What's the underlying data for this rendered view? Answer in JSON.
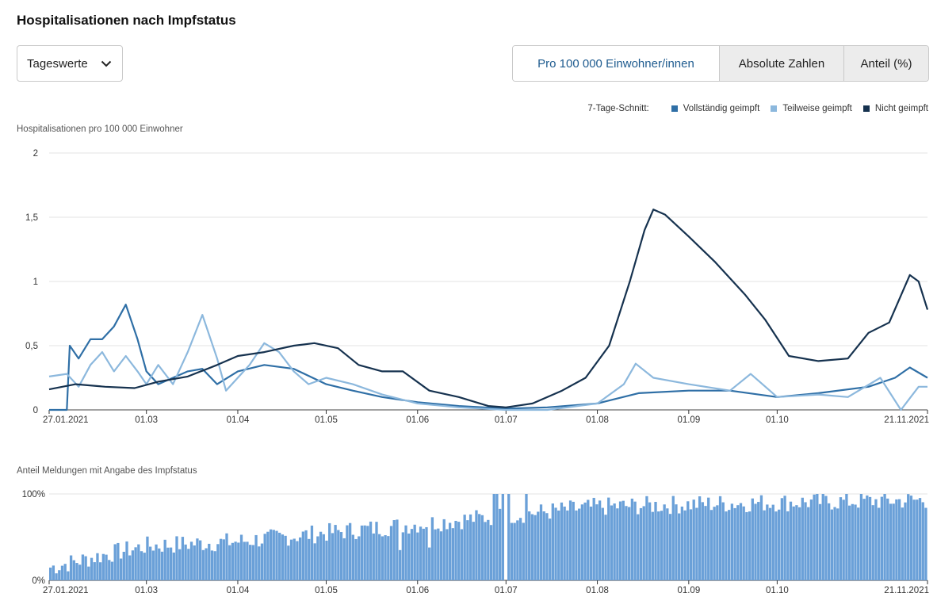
{
  "title": "Hospitalisationen nach Impfstatus",
  "dropdown": {
    "label": "Tageswerte",
    "icon": "chevron-down-icon"
  },
  "segmented": {
    "options": [
      "Pro 100 000 Einwohner/innen",
      "Absolute Zahlen",
      "Anteil (%)"
    ],
    "selected": "Pro 100 000 Einwohner/innen"
  },
  "legend": {
    "title": "7-Tage-Schnitt:",
    "items": [
      {
        "label": "Vollständig geimpft",
        "color": "#2f6fa6"
      },
      {
        "label": "Teilweise geimpft",
        "color": "#8cb8dd"
      },
      {
        "label": "Nicht geimpft",
        "color": "#16324f"
      }
    ]
  },
  "chart_data": [
    {
      "type": "line",
      "ylabel": "Hospitalisationen pro 100 000 Einwohner",
      "ylim": [
        0,
        2
      ],
      "yticks": [
        "0",
        "0,5",
        "1",
        "1,5",
        "2"
      ],
      "xlim": [
        "2021-01-27",
        "2021-11-21"
      ],
      "xtick_labels": [
        "27.01.2021",
        "01.03",
        "01.04",
        "01.05",
        "01.06",
        "01.07",
        "01.08",
        "01.09",
        "01.10",
        "21.11.2021"
      ],
      "grid": true,
      "series": [
        {
          "name": "Vollständig geimpft",
          "color": "#2f6fa6",
          "points": [
            [
              "2021-01-27",
              0
            ],
            [
              "2021-02-02",
              0.0
            ],
            [
              "2021-02-03",
              0.5
            ],
            [
              "2021-02-06",
              0.4
            ],
            [
              "2021-02-10",
              0.55
            ],
            [
              "2021-02-14",
              0.55
            ],
            [
              "2021-02-18",
              0.65
            ],
            [
              "2021-02-22",
              0.82
            ],
            [
              "2021-02-26",
              0.55
            ],
            [
              "2021-03-01",
              0.3
            ],
            [
              "2021-03-05",
              0.2
            ],
            [
              "2021-03-10",
              0.25
            ],
            [
              "2021-03-15",
              0.3
            ],
            [
              "2021-03-20",
              0.32
            ],
            [
              "2021-03-25",
              0.2
            ],
            [
              "2021-04-01",
              0.3
            ],
            [
              "2021-04-10",
              0.35
            ],
            [
              "2021-04-20",
              0.32
            ],
            [
              "2021-05-01",
              0.2
            ],
            [
              "2021-05-10",
              0.15
            ],
            [
              "2021-05-20",
              0.1
            ],
            [
              "2021-06-01",
              0.06
            ],
            [
              "2021-06-15",
              0.03
            ],
            [
              "2021-07-01",
              0.01
            ],
            [
              "2021-07-15",
              0.02
            ],
            [
              "2021-08-01",
              0.05
            ],
            [
              "2021-08-15",
              0.13
            ],
            [
              "2021-09-01",
              0.15
            ],
            [
              "2021-09-15",
              0.15
            ],
            [
              "2021-10-01",
              0.1
            ],
            [
              "2021-10-15",
              0.13
            ],
            [
              "2021-11-01",
              0.18
            ],
            [
              "2021-11-10",
              0.25
            ],
            [
              "2021-11-15",
              0.33
            ],
            [
              "2021-11-21",
              0.25
            ]
          ]
        },
        {
          "name": "Teilweise geimpft",
          "color": "#8cb8dd",
          "points": [
            [
              "2021-01-27",
              0.26
            ],
            [
              "2021-02-02",
              0.28
            ],
            [
              "2021-02-06",
              0.18
            ],
            [
              "2021-02-10",
              0.35
            ],
            [
              "2021-02-14",
              0.45
            ],
            [
              "2021-02-18",
              0.3
            ],
            [
              "2021-02-22",
              0.42
            ],
            [
              "2021-02-26",
              0.3
            ],
            [
              "2021-03-01",
              0.2
            ],
            [
              "2021-03-05",
              0.35
            ],
            [
              "2021-03-10",
              0.2
            ],
            [
              "2021-03-15",
              0.45
            ],
            [
              "2021-03-20",
              0.74
            ],
            [
              "2021-03-25",
              0.4
            ],
            [
              "2021-03-28",
              0.15
            ],
            [
              "2021-04-05",
              0.35
            ],
            [
              "2021-04-10",
              0.52
            ],
            [
              "2021-04-15",
              0.45
            ],
            [
              "2021-04-20",
              0.3
            ],
            [
              "2021-04-25",
              0.2
            ],
            [
              "2021-05-01",
              0.25
            ],
            [
              "2021-05-10",
              0.2
            ],
            [
              "2021-05-20",
              0.12
            ],
            [
              "2021-06-01",
              0.05
            ],
            [
              "2021-06-15",
              0.02
            ],
            [
              "2021-07-01",
              0.0
            ],
            [
              "2021-07-15",
              0.0
            ],
            [
              "2021-08-01",
              0.05
            ],
            [
              "2021-08-10",
              0.2
            ],
            [
              "2021-08-14",
              0.36
            ],
            [
              "2021-08-20",
              0.25
            ],
            [
              "2021-09-01",
              0.2
            ],
            [
              "2021-09-15",
              0.15
            ],
            [
              "2021-09-22",
              0.28
            ],
            [
              "2021-10-01",
              0.1
            ],
            [
              "2021-10-15",
              0.12
            ],
            [
              "2021-10-25",
              0.1
            ],
            [
              "2021-11-05",
              0.25
            ],
            [
              "2021-11-12",
              0.0
            ],
            [
              "2021-11-18",
              0.18
            ],
            [
              "2021-11-21",
              0.18
            ]
          ]
        },
        {
          "name": "Nicht geimpft",
          "color": "#16324f",
          "points": [
            [
              "2021-01-27",
              0.16
            ],
            [
              "2021-02-05",
              0.2
            ],
            [
              "2021-02-15",
              0.18
            ],
            [
              "2021-02-25",
              0.17
            ],
            [
              "2021-03-05",
              0.22
            ],
            [
              "2021-03-15",
              0.26
            ],
            [
              "2021-03-25",
              0.35
            ],
            [
              "2021-04-01",
              0.42
            ],
            [
              "2021-04-10",
              0.45
            ],
            [
              "2021-04-20",
              0.5
            ],
            [
              "2021-04-27",
              0.52
            ],
            [
              "2021-05-05",
              0.48
            ],
            [
              "2021-05-12",
              0.35
            ],
            [
              "2021-05-20",
              0.3
            ],
            [
              "2021-05-27",
              0.3
            ],
            [
              "2021-06-05",
              0.15
            ],
            [
              "2021-06-15",
              0.1
            ],
            [
              "2021-06-25",
              0.03
            ],
            [
              "2021-07-01",
              0.02
            ],
            [
              "2021-07-10",
              0.05
            ],
            [
              "2021-07-20",
              0.15
            ],
            [
              "2021-07-28",
              0.25
            ],
            [
              "2021-08-05",
              0.5
            ],
            [
              "2021-08-12",
              1.0
            ],
            [
              "2021-08-17",
              1.4
            ],
            [
              "2021-08-20",
              1.56
            ],
            [
              "2021-08-24",
              1.52
            ],
            [
              "2021-09-01",
              1.35
            ],
            [
              "2021-09-10",
              1.15
            ],
            [
              "2021-09-20",
              0.9
            ],
            [
              "2021-09-27",
              0.7
            ],
            [
              "2021-10-05",
              0.42
            ],
            [
              "2021-10-15",
              0.38
            ],
            [
              "2021-10-25",
              0.4
            ],
            [
              "2021-11-01",
              0.6
            ],
            [
              "2021-11-08",
              0.68
            ],
            [
              "2021-11-15",
              1.05
            ],
            [
              "2021-11-18",
              1.0
            ],
            [
              "2021-11-21",
              0.78
            ]
          ]
        }
      ]
    },
    {
      "type": "bar",
      "ylabel": "Anteil Meldungen mit Angabe des Impfstatus",
      "ylim": [
        0,
        100
      ],
      "yticks": [
        "0%",
        "100%"
      ],
      "xlim": [
        "2021-01-27",
        "2021-11-21"
      ],
      "xtick_labels": [
        "27.01.2021",
        "01.03",
        "01.04",
        "01.05",
        "01.06",
        "01.07",
        "01.08",
        "01.09",
        "01.10",
        "21.11.2021"
      ],
      "color": "#6aa0d8",
      "trend_anchors": [
        [
          "2021-01-27",
          15
        ],
        [
          "2021-02-15",
          30
        ],
        [
          "2021-03-01",
          40
        ],
        [
          "2021-04-01",
          45
        ],
        [
          "2021-05-01",
          55
        ],
        [
          "2021-06-01",
          65
        ],
        [
          "2021-07-01",
          75
        ],
        [
          "2021-08-01",
          85
        ],
        [
          "2021-09-01",
          88
        ],
        [
          "2021-10-01",
          90
        ],
        [
          "2021-11-21",
          93
        ]
      ],
      "notable_values": [
        [
          "2021-06-27",
          100
        ],
        [
          "2021-06-28",
          100
        ],
        [
          "2021-06-30",
          100
        ],
        [
          "2021-07-01",
          0
        ],
        [
          "2021-07-02",
          100
        ],
        [
          "2021-07-08",
          100
        ],
        [
          "2021-05-26",
          35
        ],
        [
          "2021-06-05",
          38
        ]
      ]
    }
  ]
}
